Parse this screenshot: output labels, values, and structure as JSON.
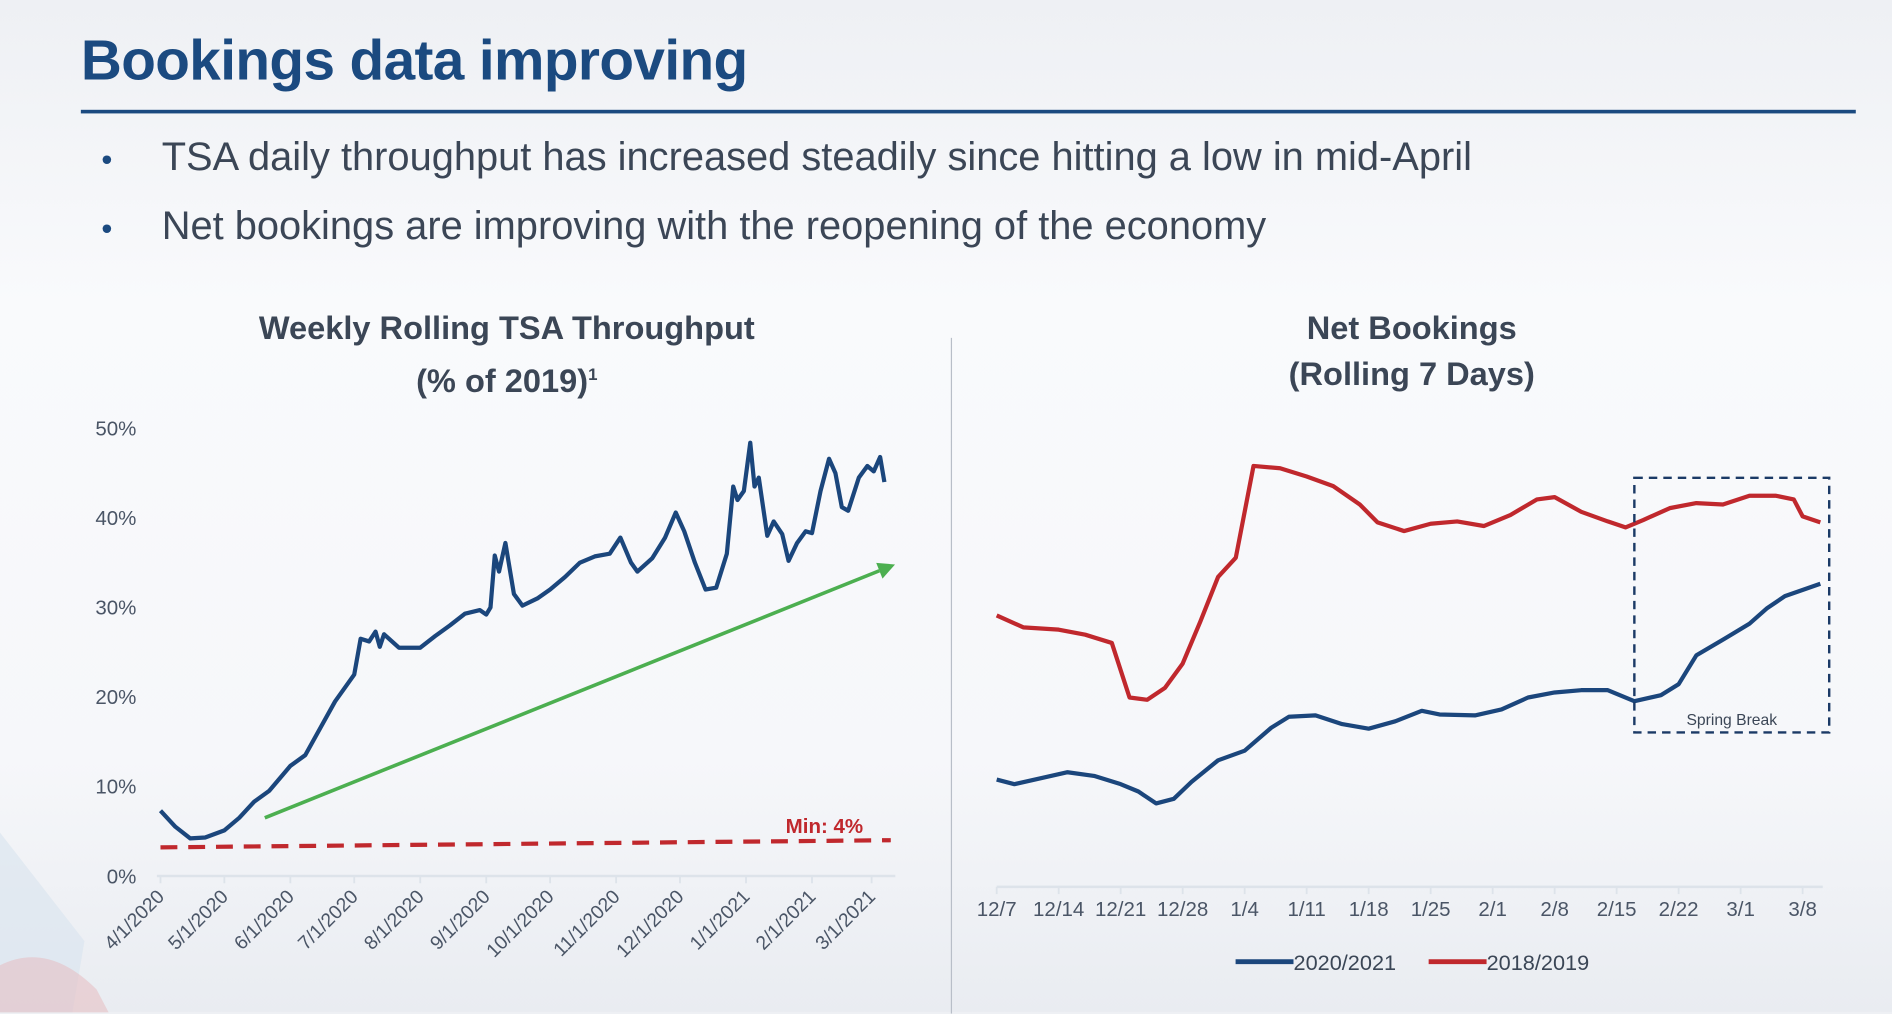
{
  "slide": {
    "title": "Bookings data improving",
    "bullets": [
      "TSA daily throughput has increased steadily since hitting a low in mid-April",
      "Net bookings are improving with the reopening of the economy"
    ]
  },
  "colors": {
    "title": "#1b4a80",
    "series_blue": "#1b467c",
    "series_red": "#c0282d",
    "trend_green": "#4caf50",
    "min_red": "#c0282d"
  },
  "chart_data": [
    {
      "type": "line",
      "title_line1": "Weekly Rolling TSA Throughput",
      "title_line2": "(% of 2019)",
      "title_footnote": "1",
      "ylim": [
        0,
        50
      ],
      "yticks": [
        "0%",
        "10%",
        "20%",
        "30%",
        "40%",
        "50%"
      ],
      "ytick_values": [
        0,
        10,
        20,
        30,
        40,
        50
      ],
      "xlim": [
        "4/1/2020",
        "3/11/2021"
      ],
      "xticks": [
        "4/1/2020",
        "5/1/2020",
        "6/1/2020",
        "7/1/2020",
        "8/1/2020",
        "9/1/2020",
        "10/1/2020",
        "11/1/2020",
        "12/1/2020",
        "1/1/2021",
        "2/1/2021",
        "3/1/2021"
      ],
      "grid": false,
      "series": [
        {
          "points": [
            [
              "4/1/2020",
              7.3
            ],
            [
              "4/8/2020",
              5.5
            ],
            [
              "4/15/2020",
              4.2
            ],
            [
              "4/22/2020",
              4.3
            ],
            [
              "5/1/2020",
              5.1
            ],
            [
              "5/8/2020",
              6.5
            ],
            [
              "5/15/2020",
              8.3
            ],
            [
              "5/22/2020",
              9.5
            ],
            [
              "6/1/2020",
              12.3
            ],
            [
              "6/8/2020",
              13.5
            ],
            [
              "6/15/2020",
              16.5
            ],
            [
              "6/22/2020",
              19.5
            ],
            [
              "7/1/2020",
              22.5
            ],
            [
              "7/4/2020",
              26.5
            ],
            [
              "7/8/2020",
              26.2
            ],
            [
              "7/11/2020",
              27.3
            ],
            [
              "7/13/2020",
              25.6
            ],
            [
              "7/15/2020",
              27
            ],
            [
              "7/22/2020",
              25.5
            ],
            [
              "8/1/2020",
              25.5
            ],
            [
              "8/8/2020",
              26.8
            ],
            [
              "8/15/2020",
              28
            ],
            [
              "8/22/2020",
              29.3
            ],
            [
              "8/29/2020",
              29.7
            ],
            [
              "9/1/2020",
              29.2
            ],
            [
              "9/3/2020",
              30
            ],
            [
              "9/5/2020",
              35.8
            ],
            [
              "9/7/2020",
              34
            ],
            [
              "9/10/2020",
              37.2
            ],
            [
              "9/14/2020",
              31.5
            ],
            [
              "9/18/2020",
              30.2
            ],
            [
              "9/25/2020",
              31
            ],
            [
              "10/1/2020",
              32
            ],
            [
              "10/8/2020",
              33.4
            ],
            [
              "10/15/2020",
              35
            ],
            [
              "10/22/2020",
              35.7
            ],
            [
              "10/29/2020",
              36
            ],
            [
              "11/3/2020",
              37.8
            ],
            [
              "11/8/2020",
              35
            ],
            [
              "11/11/2020",
              34
            ],
            [
              "11/18/2020",
              35.5
            ],
            [
              "11/24/2020",
              37.8
            ],
            [
              "11/29/2020",
              40.6
            ],
            [
              "12/3/2020",
              38.5
            ],
            [
              "12/8/2020",
              35
            ],
            [
              "12/13/2020",
              32
            ],
            [
              "12/18/2020",
              32.2
            ],
            [
              "12/23/2020",
              36
            ],
            [
              "12/26/2020",
              43.5
            ],
            [
              "12/28/2020",
              42
            ],
            [
              "12/31/2020",
              43
            ],
            [
              "1/3/2021",
              48.4
            ],
            [
              "1/5/2021",
              43.5
            ],
            [
              "1/7/2021",
              44.5
            ],
            [
              "1/11/2021",
              38
            ],
            [
              "1/14/2021",
              39.6
            ],
            [
              "1/18/2021",
              38.2
            ],
            [
              "1/21/2021",
              35.2
            ],
            [
              "1/25/2021",
              37.2
            ],
            [
              "1/29/2021",
              38.5
            ],
            [
              "2/1/2021",
              38.3
            ],
            [
              "2/5/2021",
              43
            ],
            [
              "2/9/2021",
              46.6
            ],
            [
              "2/12/2021",
              45
            ],
            [
              "2/15/2021",
              41.2
            ],
            [
              "2/18/2021",
              40.8
            ],
            [
              "2/23/2021",
              44.5
            ],
            [
              "2/27/2021",
              45.8
            ],
            [
              "3/2/2021",
              45.2
            ],
            [
              "3/5/2021",
              46.8
            ],
            [
              "3/7/2021",
              44
            ]
          ]
        }
      ],
      "annotations": {
        "trend_arrow": {
          "from": [
            "5/20/2020",
            6.5
          ],
          "to": [
            "3/12/2021",
            34.8
          ]
        },
        "min_line": {
          "from": [
            "4/1/2020",
            3.2
          ],
          "to": [
            "3/10/2021",
            4.0
          ],
          "label": "Min: 4%"
        }
      }
    },
    {
      "type": "line",
      "title_line1": "Net Bookings",
      "title_line2": "(Rolling 7 Days)",
      "ylim": [
        0,
        100
      ],
      "xlim": [
        "12/7",
        "3/10"
      ],
      "xticks": [
        "12/7",
        "12/14",
        "12/21",
        "12/28",
        "1/4",
        "1/11",
        "1/18",
        "1/25",
        "2/1",
        "2/8",
        "2/15",
        "2/22",
        "3/1",
        "3/8"
      ],
      "grid": false,
      "legend_placement": "bottom",
      "series": [
        {
          "name": "2020/2021",
          "color": "#1b467c",
          "points": [
            [
              "12/7",
              23.4
            ],
            [
              "12/9",
              22.4
            ],
            [
              "12/12",
              23.7
            ],
            [
              "12/15",
              25.0
            ],
            [
              "12/18",
              24.2
            ],
            [
              "12/21",
              22.4
            ],
            [
              "12/23",
              20.8
            ],
            [
              "12/25",
              18.2
            ],
            [
              "12/27",
              19.2
            ],
            [
              "12/29",
              22.9
            ],
            [
              "1/1",
              27.6
            ],
            [
              "1/4",
              29.7
            ],
            [
              "1/7",
              34.7
            ],
            [
              "1/9",
              37.1
            ],
            [
              "1/12",
              37.4
            ],
            [
              "1/15",
              35.5
            ],
            [
              "1/18",
              34.5
            ],
            [
              "1/21",
              36.1
            ],
            [
              "1/24",
              38.4
            ],
            [
              "1/26",
              37.6
            ],
            [
              "1/30",
              37.4
            ],
            [
              "2/2",
              38.7
            ],
            [
              "2/5",
              41.3
            ],
            [
              "2/8",
              42.4
            ],
            [
              "2/11",
              42.9
            ],
            [
              "2/14",
              42.9
            ],
            [
              "2/17",
              40.5
            ],
            [
              "2/20",
              41.8
            ],
            [
              "2/22",
              44.2
            ],
            [
              "2/24",
              50.5
            ],
            [
              "2/27",
              53.9
            ],
            [
              "3/2",
              57.4
            ],
            [
              "3/4",
              60.8
            ],
            [
              "3/6",
              63.4
            ],
            [
              "3/10",
              66.1
            ]
          ]
        },
        {
          "name": "2018/2019",
          "color": "#c0282d",
          "points": [
            [
              "12/7",
              59.2
            ],
            [
              "12/10",
              56.6
            ],
            [
              "12/14",
              56.1
            ],
            [
              "12/17",
              55.0
            ],
            [
              "12/20",
              53.2
            ],
            [
              "12/22",
              41.3
            ],
            [
              "12/24",
              40.8
            ],
            [
              "12/26",
              43.4
            ],
            [
              "12/28",
              48.7
            ],
            [
              "12/30",
              57.9
            ],
            [
              "1/1",
              67.6
            ],
            [
              "1/3",
              71.8
            ],
            [
              "1/5",
              91.8
            ],
            [
              "1/8",
              91.3
            ],
            [
              "1/11",
              89.5
            ],
            [
              "1/14",
              87.4
            ],
            [
              "1/17",
              83.4
            ],
            [
              "1/19",
              79.5
            ],
            [
              "1/22",
              77.6
            ],
            [
              "1/25",
              79.2
            ],
            [
              "1/28",
              79.7
            ],
            [
              "1/31",
              78.7
            ],
            [
              "2/3",
              81.1
            ],
            [
              "2/6",
              84.5
            ],
            [
              "2/8",
              85.0
            ],
            [
              "2/11",
              81.8
            ],
            [
              "2/14",
              79.7
            ],
            [
              "2/16",
              78.4
            ],
            [
              "2/18",
              80.0
            ],
            [
              "2/21",
              82.6
            ],
            [
              "2/24",
              83.7
            ],
            [
              "2/27",
              83.4
            ],
            [
              "3/2",
              85.3
            ],
            [
              "3/5",
              85.3
            ],
            [
              "3/7",
              84.5
            ],
            [
              "3/8",
              80.8
            ],
            [
              "3/10",
              79.5
            ]
          ]
        }
      ],
      "annotations": {
        "highlight_box": {
          "from": "2/17",
          "to": "3/11",
          "label": "Spring Break"
        }
      }
    }
  ]
}
